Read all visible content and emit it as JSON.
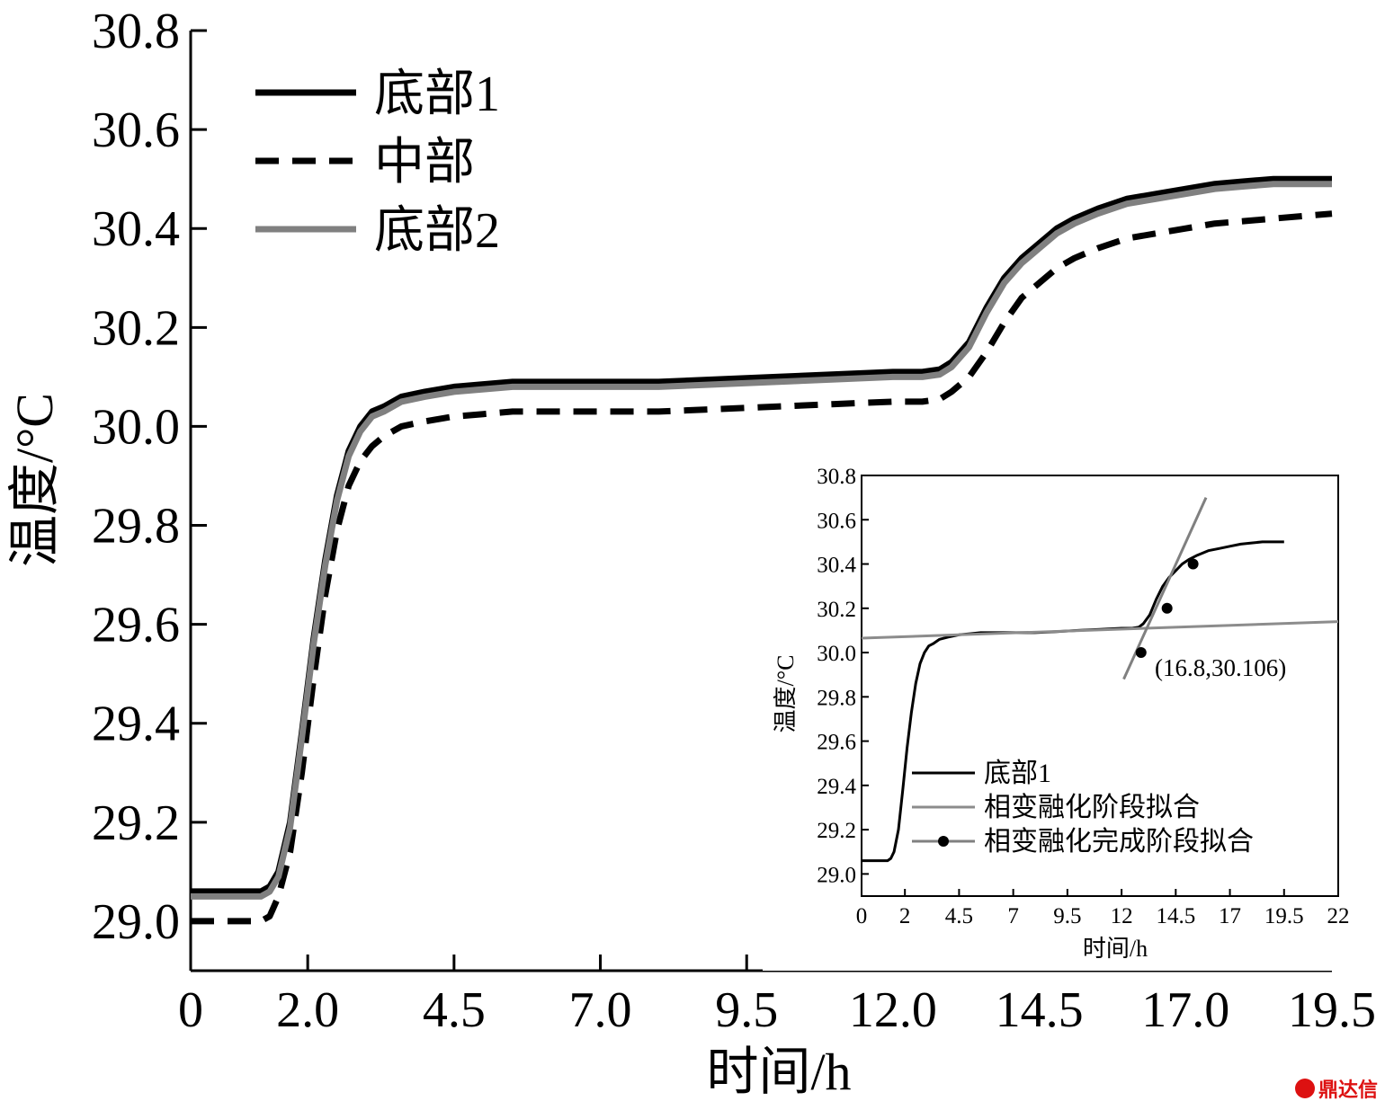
{
  "chart_data": [
    {
      "type": "line",
      "xlabel": "时间/h",
      "ylabel": "温度/°C",
      "xlim": [
        0,
        19.5
      ],
      "ylim": [
        28.9,
        30.8
      ],
      "xticks": [
        "0",
        "2.0",
        "4.5",
        "7.0",
        "9.5",
        "12.0",
        "14.5",
        "17.0",
        "19.5"
      ],
      "yticks": [
        "29.0",
        "29.2",
        "29.4",
        "29.6",
        "29.8",
        "30.0",
        "30.2",
        "30.4",
        "30.6",
        "30.8"
      ],
      "legend_position": "top-left",
      "series": [
        {
          "name": "底部1",
          "color": "#000000",
          "style": "solid",
          "x": [
            0,
            1.2,
            1.35,
            1.5,
            1.7,
            1.9,
            2.1,
            2.3,
            2.5,
            2.7,
            2.9,
            3.1,
            3.3,
            3.6,
            4.0,
            4.5,
            5.0,
            5.5,
            6.0,
            7.0,
            8.0,
            9.0,
            10.0,
            11.0,
            12.0,
            12.5,
            12.8,
            13.0,
            13.3,
            13.6,
            13.9,
            14.2,
            14.5,
            14.8,
            15.1,
            15.5,
            16.0,
            16.5,
            17.0,
            17.5,
            18.0,
            18.5,
            19.0,
            19.5
          ],
          "values": [
            29.06,
            29.06,
            29.07,
            29.1,
            29.2,
            29.38,
            29.57,
            29.73,
            29.86,
            29.95,
            30.0,
            30.03,
            30.04,
            30.06,
            30.07,
            30.08,
            30.085,
            30.09,
            30.09,
            30.09,
            30.09,
            30.095,
            30.1,
            30.105,
            30.11,
            30.11,
            30.115,
            30.13,
            30.17,
            30.24,
            30.3,
            30.34,
            30.37,
            30.4,
            30.42,
            30.44,
            30.46,
            30.47,
            30.48,
            30.49,
            30.495,
            30.5,
            30.5,
            30.5
          ]
        },
        {
          "name": "中部",
          "color": "#000000",
          "style": "dashed",
          "x": [
            0,
            1.2,
            1.35,
            1.5,
            1.7,
            1.9,
            2.1,
            2.3,
            2.5,
            2.7,
            2.9,
            3.1,
            3.3,
            3.6,
            4.0,
            4.5,
            5.0,
            5.5,
            6.0,
            7.0,
            8.0,
            9.0,
            10.0,
            11.0,
            12.0,
            12.5,
            12.8,
            13.0,
            13.3,
            13.6,
            13.9,
            14.2,
            14.5,
            14.8,
            15.1,
            15.5,
            16.0,
            16.5,
            17.0,
            17.5,
            18.0,
            18.5,
            19.0,
            19.5
          ],
          "values": [
            29.0,
            29.0,
            29.01,
            29.05,
            29.14,
            29.3,
            29.49,
            29.66,
            29.79,
            29.88,
            29.93,
            29.96,
            29.98,
            30.0,
            30.01,
            30.02,
            30.025,
            30.03,
            30.03,
            30.03,
            30.03,
            30.035,
            30.04,
            30.045,
            30.05,
            30.05,
            30.055,
            30.07,
            30.1,
            30.15,
            30.21,
            30.26,
            30.29,
            30.32,
            30.34,
            30.36,
            30.38,
            30.39,
            30.4,
            30.41,
            30.415,
            30.42,
            30.425,
            30.43
          ]
        },
        {
          "name": "底部2",
          "color": "#808080",
          "style": "solid",
          "x": [
            0,
            1.2,
            1.35,
            1.5,
            1.7,
            1.9,
            2.1,
            2.3,
            2.5,
            2.7,
            2.9,
            3.1,
            3.3,
            3.6,
            4.0,
            4.5,
            5.0,
            5.5,
            6.0,
            7.0,
            8.0,
            9.0,
            10.0,
            11.0,
            12.0,
            12.5,
            12.8,
            13.0,
            13.3,
            13.6,
            13.9,
            14.2,
            14.5,
            14.8,
            15.1,
            15.5,
            16.0,
            16.5,
            17.0,
            17.5,
            18.0,
            18.5,
            19.0,
            19.5
          ],
          "values": [
            29.05,
            29.05,
            29.06,
            29.09,
            29.19,
            29.37,
            29.56,
            29.72,
            29.85,
            29.94,
            29.99,
            30.02,
            30.03,
            30.05,
            30.06,
            30.07,
            30.075,
            30.08,
            30.08,
            30.08,
            30.08,
            30.085,
            30.09,
            30.095,
            30.1,
            30.1,
            30.105,
            30.12,
            30.16,
            30.23,
            30.29,
            30.33,
            30.36,
            30.39,
            30.41,
            30.43,
            30.45,
            30.46,
            30.47,
            30.48,
            30.485,
            30.49,
            30.49,
            30.49
          ]
        }
      ]
    },
    {
      "type": "line",
      "xlabel": "时间/h",
      "ylabel": "温度/°C",
      "xlim": [
        0,
        22
      ],
      "ylim": [
        28.9,
        30.8
      ],
      "xticks": [
        "0",
        "2",
        "4.5",
        "7",
        "9.5",
        "12",
        "14.5",
        "17",
        "19.5",
        "22"
      ],
      "yticks": [
        "29.0",
        "29.2",
        "29.4",
        "29.6",
        "29.8",
        "30.0",
        "30.2",
        "30.4",
        "30.6",
        "30.8"
      ],
      "legend_position": "bottom-right",
      "annotation": "(16.8,30.106)",
      "series": [
        {
          "name": "底部1",
          "color": "#000000",
          "style": "solid",
          "x": [
            0,
            1.2,
            1.35,
            1.5,
            1.7,
            1.9,
            2.1,
            2.3,
            2.5,
            2.7,
            2.9,
            3.1,
            3.3,
            3.6,
            4.0,
            4.5,
            5.0,
            5.5,
            6.0,
            7.0,
            8.0,
            9.0,
            10.0,
            11.0,
            12.0,
            12.5,
            12.8,
            13.0,
            13.3,
            13.6,
            13.9,
            14.2,
            14.5,
            14.8,
            15.1,
            15.5,
            16.0,
            16.5,
            17.0,
            17.5,
            18.0,
            18.5,
            19.0,
            19.5
          ],
          "values": [
            29.06,
            29.06,
            29.07,
            29.1,
            29.2,
            29.38,
            29.57,
            29.73,
            29.86,
            29.95,
            30.0,
            30.03,
            30.04,
            30.06,
            30.07,
            30.08,
            30.085,
            30.09,
            30.09,
            30.09,
            30.09,
            30.095,
            30.1,
            30.105,
            30.11,
            30.11,
            30.115,
            30.13,
            30.17,
            30.24,
            30.3,
            30.34,
            30.37,
            30.4,
            30.42,
            30.44,
            30.46,
            30.47,
            30.48,
            30.49,
            30.495,
            30.5,
            30.5,
            30.5
          ]
        },
        {
          "name": "相变融化阶段拟合",
          "color": "#8c8c8c",
          "style": "solid",
          "x": [
            0,
            22
          ],
          "values": [
            30.065,
            30.14
          ]
        },
        {
          "name": "相变融化完成阶段拟合",
          "color": "#808080",
          "style": "solid-marker",
          "x": [
            12.1,
            15.9
          ],
          "values": [
            29.88,
            30.7
          ],
          "markers": {
            "x": [
              12.9,
              14.1,
              15.3
            ],
            "values": [
              30.0,
              30.2,
              30.4
            ]
          }
        }
      ]
    }
  ],
  "watermark": {
    "text": "鼎达信"
  }
}
